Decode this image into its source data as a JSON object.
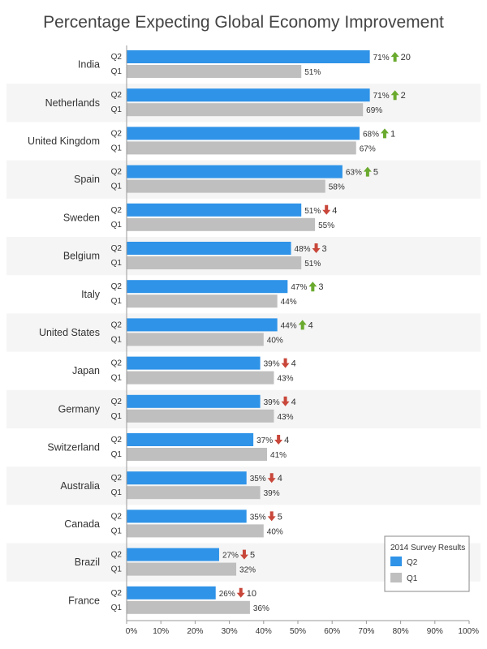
{
  "chart_data": {
    "type": "bar",
    "orientation": "horizontal",
    "title": "Percentage Expecting Global Economy Improvement",
    "categories": [
      "India",
      "Netherlands",
      "United Kingdom",
      "Spain",
      "Sweden",
      "Belgium",
      "Italy",
      "United States",
      "Japan",
      "Germany",
      "Switzerland",
      "Australia",
      "Canada",
      "Brazil",
      "France"
    ],
    "series": [
      {
        "name": "Q2",
        "color": "#2f93e8",
        "values": [
          71,
          71,
          68,
          63,
          51,
          48,
          47,
          44,
          39,
          39,
          37,
          35,
          35,
          27,
          26
        ]
      },
      {
        "name": "Q1",
        "color": "#bfbfbf",
        "values": [
          51,
          69,
          67,
          58,
          55,
          51,
          44,
          40,
          43,
          43,
          41,
          39,
          40,
          32,
          36
        ]
      }
    ],
    "changes": [
      {
        "dir": "up",
        "label": "20"
      },
      {
        "dir": "up",
        "label": "2"
      },
      {
        "dir": "up",
        "label": "1"
      },
      {
        "dir": "up",
        "label": "5"
      },
      {
        "dir": "down",
        "label": "4"
      },
      {
        "dir": "down",
        "label": "3"
      },
      {
        "dir": "up",
        "label": "3"
      },
      {
        "dir": "up",
        "label": "4"
      },
      {
        "dir": "down",
        "label": "4"
      },
      {
        "dir": "down",
        "label": "4"
      },
      {
        "dir": "down",
        "label": "4"
      },
      {
        "dir": "down",
        "label": "4"
      },
      {
        "dir": "down",
        "label": "5"
      },
      {
        "dir": "down",
        "label": "5"
      },
      {
        "dir": "down",
        "label": "10"
      }
    ],
    "up_color": "#6aaa2e",
    "down_color": "#c8473a",
    "xlim": [
      0,
      100
    ],
    "xticks": [
      "0%",
      "10%",
      "20%",
      "30%",
      "40%",
      "50%",
      "60%",
      "70%",
      "80%",
      "90%",
      "100%"
    ],
    "value_suffix": "%",
    "legend": {
      "title": "2014 Survey Results",
      "position": "bottom-right"
    },
    "grid": false,
    "band_color": "#f5f5f5"
  }
}
